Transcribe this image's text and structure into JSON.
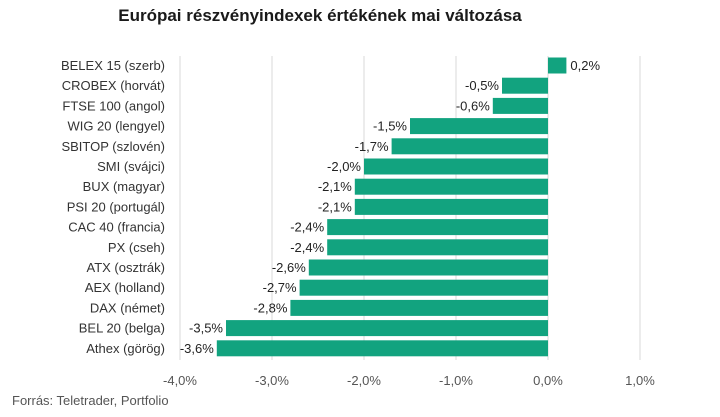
{
  "chart_data": {
    "type": "bar",
    "orientation": "horizontal",
    "title": "Európai részvényindexek értékének mai változása",
    "categories": [
      "BELEX 15 (szerb)",
      "CROBEX (horvát)",
      "FTSE 100 (angol)",
      "WIG 20 (lengyel)",
      "SBITOP (szlovén)",
      "SMI (svájci)",
      "BUX (magyar)",
      "PSI 20 (portugál)",
      "CAC 40 (francia)",
      "PX (cseh)",
      "ATX (osztrák)",
      "AEX (holland)",
      "DAX (német)",
      "BEL 20 (belga)",
      "Athex (görög)"
    ],
    "values": [
      0.2,
      -0.5,
      -0.6,
      -1.5,
      -1.7,
      -2.0,
      -2.1,
      -2.1,
      -2.4,
      -2.4,
      -2.6,
      -2.7,
      -2.8,
      -3.5,
      -3.6
    ],
    "value_labels": [
      "0,2%",
      "-0,5%",
      "-0,6%",
      "-1,5%",
      "-1,7%",
      "-2,0%",
      "-2,1%",
      "-2,1%",
      "-2,4%",
      "-2,4%",
      "-2,6%",
      "-2,7%",
      "-2,8%",
      "-3,5%",
      "-3,6%"
    ],
    "xlim": [
      -4.0,
      1.0
    ],
    "xticks": [
      -4.0,
      -3.0,
      -2.0,
      -1.0,
      0.0,
      1.0
    ],
    "xtick_labels": [
      "-4,0%",
      "-3,0%",
      "-2,0%",
      "-1,0%",
      "0,0%",
      "1,0%"
    ],
    "grid": "vertical",
    "bar_color": "#12a37f",
    "grid_color": "#d9d9d9"
  },
  "source": "Forrás: Teletrader, Portfolio"
}
